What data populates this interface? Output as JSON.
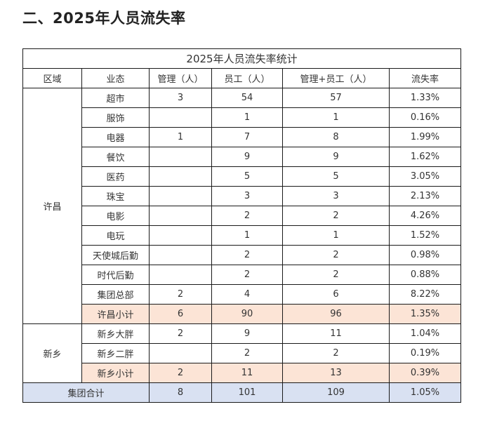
{
  "page": {
    "heading": "二、2025年人员流失率"
  },
  "table": {
    "title": "2025年人员流失率统计",
    "headers": [
      "区域",
      "业态",
      "管理（人）",
      "员工（人）",
      "管理+员工（人）",
      "流失率"
    ],
    "groups": [
      {
        "region": "许昌",
        "rows": [
          {
            "type": "超市",
            "mgr": "3",
            "emp": "54",
            "sum": "57",
            "rate": "1.33%"
          },
          {
            "type": "服饰",
            "mgr": "",
            "emp": "1",
            "sum": "1",
            "rate": "0.16%"
          },
          {
            "type": "电器",
            "mgr": "1",
            "emp": "7",
            "sum": "8",
            "rate": "1.99%"
          },
          {
            "type": "餐饮",
            "mgr": "",
            "emp": "9",
            "sum": "9",
            "rate": "1.62%"
          },
          {
            "type": "医药",
            "mgr": "",
            "emp": "5",
            "sum": "5",
            "rate": "3.05%"
          },
          {
            "type": "珠宝",
            "mgr": "",
            "emp": "3",
            "sum": "3",
            "rate": "2.13%"
          },
          {
            "type": "电影",
            "mgr": "",
            "emp": "2",
            "sum": "2",
            "rate": "4.26%"
          },
          {
            "type": "电玩",
            "mgr": "",
            "emp": "1",
            "sum": "1",
            "rate": "1.52%"
          },
          {
            "type": "天使城后勤",
            "mgr": "",
            "emp": "2",
            "sum": "2",
            "rate": "0.98%"
          },
          {
            "type": "时代后勤",
            "mgr": "",
            "emp": "2",
            "sum": "2",
            "rate": "0.88%"
          },
          {
            "type": "集团总部",
            "mgr": "2",
            "emp": "4",
            "sum": "6",
            "rate": "8.22%"
          }
        ],
        "subtotal": {
          "type": "许昌小计",
          "mgr": "6",
          "emp": "90",
          "sum": "96",
          "rate": "1.35%"
        }
      },
      {
        "region": "新乡",
        "rows": [
          {
            "type": "新乡大胖",
            "mgr": "2",
            "emp": "9",
            "sum": "11",
            "rate": "1.04%"
          },
          {
            "type": "新乡二胖",
            "mgr": "",
            "emp": "2",
            "sum": "2",
            "rate": "0.19%"
          }
        ],
        "subtotal": {
          "type": "新乡小计",
          "mgr": "2",
          "emp": "11",
          "sum": "13",
          "rate": "0.39%"
        }
      }
    ],
    "total": {
      "label": "集团合计",
      "mgr": "8",
      "emp": "101",
      "sum": "109",
      "rate": "1.05%"
    }
  },
  "colors": {
    "subtotal_bg": "#fce4d6",
    "total_bg": "#d9e1f2",
    "border": "#1a1a1a"
  }
}
